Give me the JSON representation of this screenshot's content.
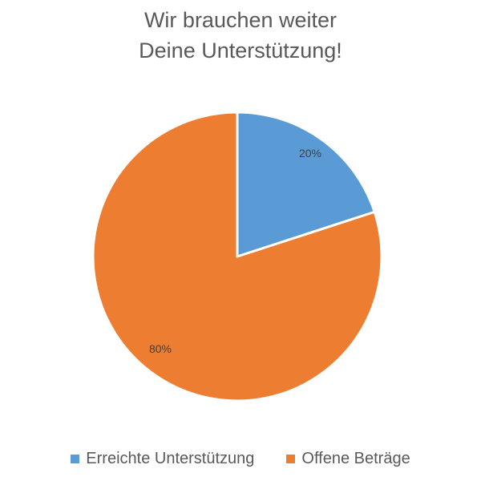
{
  "chart_data": {
    "type": "pie",
    "title_line1": "Wir brauchen weiter",
    "title_line2": "Deine Unterstützung!",
    "slices": [
      {
        "name": "Erreichte Unterstützung",
        "value": 20,
        "label": "20%",
        "color": "#5B9BD5"
      },
      {
        "name": "Offene Beträge",
        "value": 80,
        "label": "80%",
        "color": "#ED7D31"
      }
    ],
    "legend_position": "bottom"
  }
}
